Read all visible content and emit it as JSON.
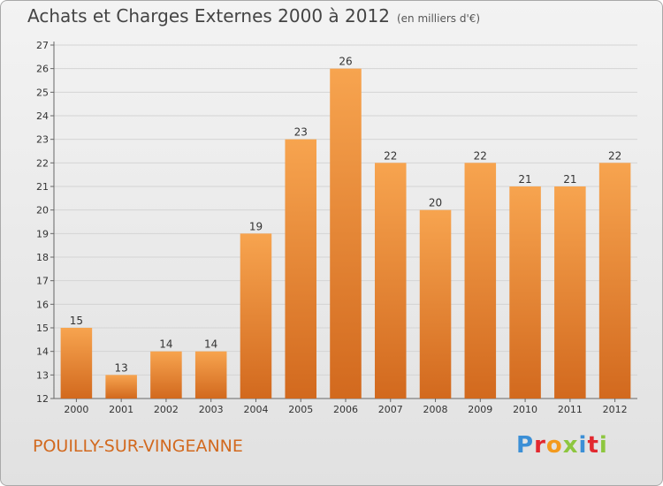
{
  "header": {
    "title": "Achats et Charges Externes 2000 à 2012",
    "subtitle": "(en milliers d'€)"
  },
  "footer": {
    "commune": "POUILLY-SUR-VINGEANNE",
    "brand": "Proxiti"
  },
  "colors": {
    "bar_light": "#f7a44f",
    "bar_dark": "#d2691e",
    "commune": "#d2691e",
    "brand_letters": [
      "#3b8fd6",
      "#e2282f",
      "#f39a1e",
      "#8dc63f",
      "#3b8fd6",
      "#e2282f",
      "#8dc63f"
    ]
  },
  "chart_data": {
    "type": "bar",
    "title": "Achats et Charges Externes 2000 à 2012",
    "subtitle": "(en milliers d'€)",
    "categories": [
      "2000",
      "2001",
      "2002",
      "2003",
      "2004",
      "2005",
      "2006",
      "2007",
      "2008",
      "2009",
      "2010",
      "2011",
      "2012"
    ],
    "values": [
      15,
      13,
      14,
      14,
      19,
      23,
      26,
      22,
      20,
      22,
      21,
      21,
      22
    ],
    "ylim": [
      12,
      27
    ],
    "yticks": [
      12,
      13,
      14,
      15,
      16,
      17,
      18,
      19,
      20,
      21,
      22,
      23,
      24,
      25,
      26,
      27
    ],
    "xlabel": "",
    "ylabel": "",
    "grid": true,
    "data_labels": true
  }
}
